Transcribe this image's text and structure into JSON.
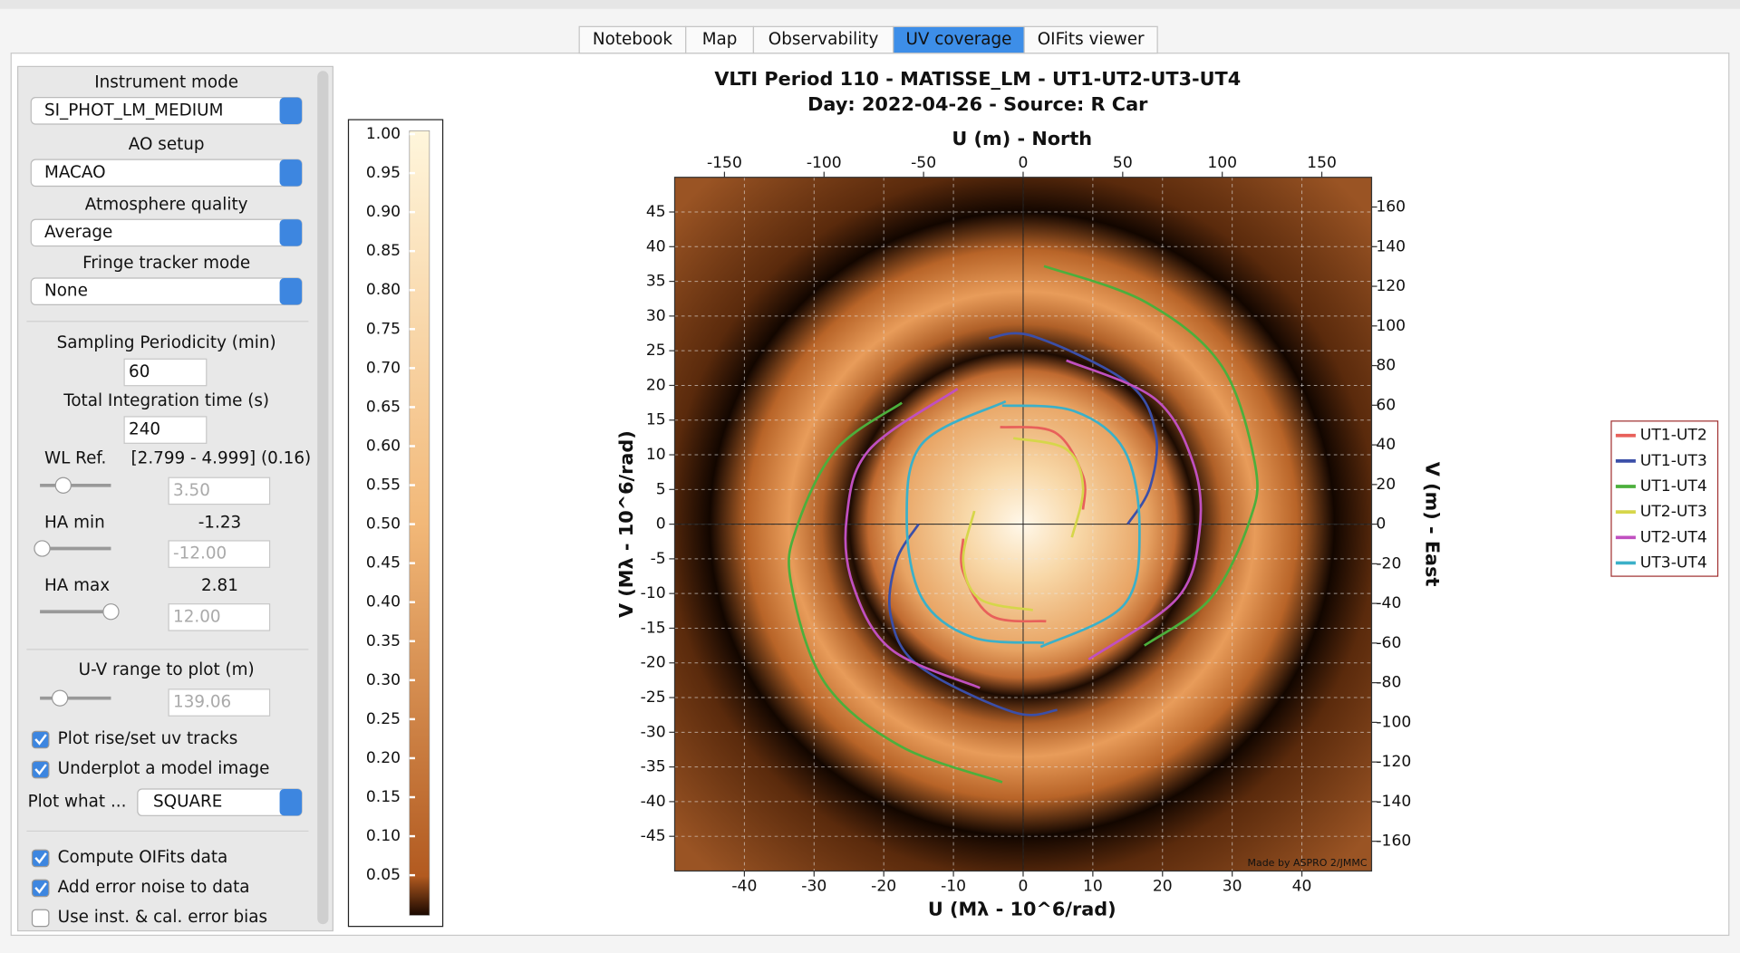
{
  "tabs": [
    "Notebook",
    "Map",
    "Observability",
    "UV coverage",
    "OIFits viewer"
  ],
  "active_tab": 3,
  "panel": {
    "combos": [
      {
        "label": "Instrument mode",
        "value": "SI_PHOT_LM_MEDIUM"
      },
      {
        "label": "AO setup",
        "value": "MACAO"
      },
      {
        "label": "Atmosphere quality",
        "value": "Average"
      },
      {
        "label": "Fringe tracker mode",
        "value": "None"
      }
    ],
    "sampling": {
      "label": "Sampling Periodicity (min)",
      "value": "60"
    },
    "integration": {
      "label": "Total Integration time (s)",
      "value": "240"
    },
    "wl_ref": {
      "label": "WL Ref.",
      "range": "[2.799 - 4.999] (0.16)",
      "field": "3.50"
    },
    "ha_min": {
      "label": "HA min",
      "value": "-1.23",
      "field": "-12.00"
    },
    "ha_max": {
      "label": "HA max",
      "value": "2.81",
      "field": "12.00"
    },
    "uv_range": {
      "label": "U-V range to plot (m)",
      "field": "139.06"
    },
    "checks": [
      {
        "label": "Plot rise/set uv tracks",
        "checked": true
      },
      {
        "label": "Underplot a model image",
        "checked": true
      }
    ],
    "plot_what": {
      "label": "Plot what ...",
      "value": "SQUARE"
    },
    "checks2": [
      {
        "label": "Compute OIFits data",
        "checked": true
      },
      {
        "label": "Add error noise to data",
        "checked": true
      },
      {
        "label": "Use inst. & cal. error bias",
        "checked": false
      }
    ]
  },
  "chart_data": {
    "type": "line",
    "title": "VLTI Period 110 - MATISSE_LM - UT1-UT2-UT3-UT4",
    "subtitle": "Day: 2022-04-26 - Source: R Car",
    "xlabel": "U (Mλ - 10^6/rad)",
    "ylabel": "V (Mλ - 10^6/rad)",
    "x2label": "U (m) - North",
    "y2label": "V (m) - East",
    "watermark": "Made by ASPRO 2/JMMC",
    "xlim": [
      -50,
      50
    ],
    "ylim": [
      -50,
      50
    ],
    "x2lim": [
      -175,
      175
    ],
    "y2lim": [
      -175,
      175
    ],
    "xticks": [
      -40,
      -30,
      -20,
      -10,
      0,
      10,
      20,
      30,
      40
    ],
    "yticks": [
      -45,
      -40,
      -35,
      -30,
      -25,
      -20,
      -15,
      -10,
      -5,
      0,
      5,
      10,
      15,
      20,
      25,
      30,
      35,
      40,
      45
    ],
    "x2ticks": [
      -150,
      -100,
      -50,
      0,
      50,
      100,
      150
    ],
    "y2ticks": [
      -160,
      -140,
      -120,
      -100,
      -80,
      -60,
      -40,
      -20,
      0,
      20,
      40,
      60,
      80,
      100,
      120,
      140,
      160
    ],
    "grid": true,
    "legend": "right",
    "colorbar": {
      "lim": [
        0,
        1
      ],
      "ticks": [
        0.05,
        {
          "value": 0.1,
          "label": "0.10"
        },
        0.15,
        {
          "value": 0.2,
          "label": "0.20"
        },
        0.25,
        {
          "value": 0.3,
          "label": "0.30"
        },
        0.35,
        {
          "value": 0.4,
          "label": "0.40"
        },
        0.45,
        {
          "value": 0.5,
          "label": "0.50"
        },
        0.55,
        {
          "value": 0.6,
          "label": "0.60"
        },
        0.65,
        {
          "value": 0.7,
          "label": "0.70"
        },
        0.75,
        {
          "value": 0.8,
          "label": "0.80"
        },
        0.85,
        {
          "value": 0.9,
          "label": "0.90"
        },
        0.95,
        {
          "value": 1,
          "label": "1.00"
        }
      ]
    },
    "series": [
      {
        "name": "UT1-UT2",
        "color": "#e8605a",
        "x": [
          -3.3,
          4.6,
          8.6,
          8.6,
          null,
          3.3,
          -4.6,
          -8.6,
          -8.6
        ],
        "values": [
          14.0,
          13.2,
          6.9,
          2.1,
          null,
          -14.0,
          -13.2,
          -6.9,
          -2.1
        ]
      },
      {
        "name": "UT1-UT3",
        "color": "#3b4fa8",
        "x": [
          -4.9,
          1.4,
          15.0,
          19.0,
          18.2,
          15.0,
          null,
          4.9,
          -1.4,
          -15.0,
          -19.0,
          -18.2,
          -15.0
        ],
        "values": [
          26.8,
          27.1,
          20.4,
          13.2,
          5.3,
          0,
          null,
          -26.8,
          -27.1,
          -20.4,
          -13.2,
          -5.3,
          0
        ]
      },
      {
        "name": "UT1-UT4",
        "color": "#4caf3c",
        "x": [
          3.0,
          17.6,
          28.5,
          33.3,
          32.5,
          26.9,
          17.4,
          null,
          -3.0,
          -17.6,
          -28.5,
          -33.3,
          -32.5,
          -26.9,
          -17.4
        ],
        "values": [
          37.2,
          32.0,
          22.8,
          8.5,
          0.5,
          -10.7,
          -17.5,
          null,
          -37.2,
          -32.0,
          -22.8,
          -8.5,
          -0.5,
          10.7,
          17.5
        ]
      },
      {
        "name": "UT2-UT3",
        "color": "#d6d64a",
        "x": [
          -1.4,
          6.2,
          8.6,
          7.0,
          null,
          1.4,
          -6.2,
          -8.6,
          -7.0
        ],
        "values": [
          12.4,
          10.8,
          5.3,
          -1.9,
          null,
          -12.4,
          -10.8,
          -5.3,
          1.9
        ]
      },
      {
        "name": "UT2-UT4",
        "color": "#c050c0",
        "x": [
          6.2,
          19.0,
          24.5,
          25.3,
          22.1,
          9.4,
          null,
          -6.2,
          -19.0,
          -24.5,
          -25.3,
          -22.1,
          -9.4
        ],
        "values": [
          23.6,
          18.0,
          8.5,
          -1.1,
          -10.7,
          -19.5,
          null,
          -23.6,
          -18.0,
          -8.5,
          1.1,
          10.7,
          19.5
        ]
      },
      {
        "name": "UT3-UT4",
        "color": "#3bb0c8",
        "x": [
          -2.5,
          -14.5,
          -16.7,
          -14.5,
          -7.3,
          3.0,
          null,
          2.5,
          14.5,
          16.7,
          14.5,
          7.3,
          -3.0
        ],
        "values": [
          17.7,
          11.6,
          0.5,
          -10.7,
          -16.3,
          -17.1,
          null,
          -17.7,
          -11.6,
          -0.5,
          10.7,
          16.3,
          17.1
        ]
      }
    ]
  }
}
